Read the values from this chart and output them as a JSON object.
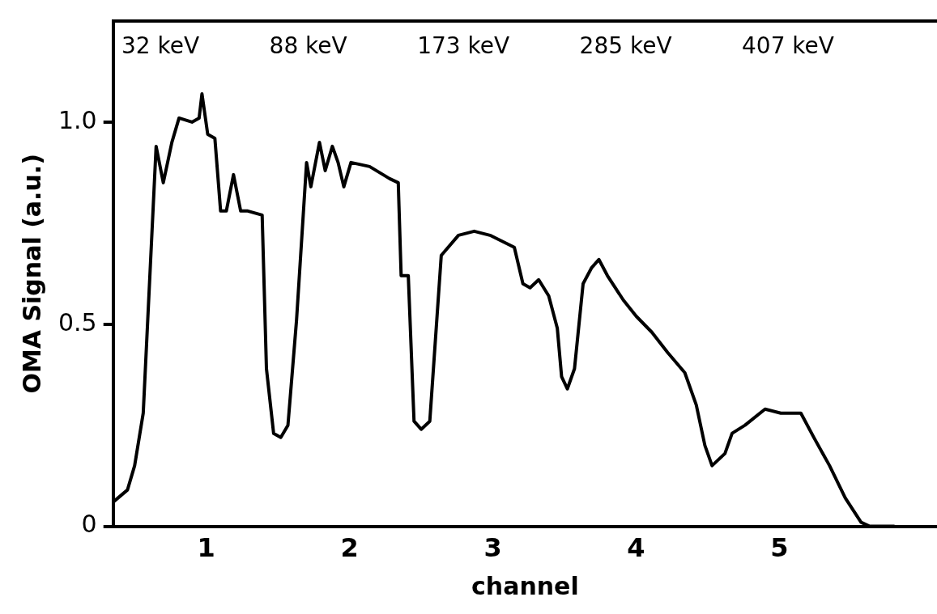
{
  "chart_data": {
    "type": "line",
    "xlabel": "channel",
    "ylabel": "OMA Signal (a.u.)",
    "x": [
      0.35,
      0.45,
      0.5,
      0.56,
      0.65,
      0.7,
      0.76,
      0.81,
      0.9,
      0.95,
      0.97,
      1.01,
      1.06,
      1.1,
      1.14,
      1.19,
      1.24,
      1.29,
      1.39,
      1.42,
      1.47,
      1.52,
      1.57,
      1.63,
      1.7,
      1.73,
      1.79,
      1.83,
      1.88,
      1.92,
      1.96,
      2.01,
      2.14,
      2.28,
      2.34,
      2.36,
      2.41,
      2.45,
      2.5,
      2.56,
      2.64,
      2.76,
      2.87,
      2.98,
      3.15,
      3.21,
      3.26,
      3.32,
      3.39,
      3.45,
      3.48,
      3.52,
      3.57,
      3.63,
      3.69,
      3.74,
      3.8,
      3.91,
      4.0,
      4.11,
      4.22,
      4.34,
      4.42,
      4.48,
      4.53,
      4.62,
      4.67,
      4.76,
      4.9,
      5.01,
      5.15,
      5.24,
      5.35,
      5.46,
      5.57,
      5.63,
      5.8
    ],
    "series": [
      {
        "color": "#000000",
        "values": [
          0.06,
          0.09,
          0.15,
          0.28,
          0.94,
          0.85,
          0.95,
          1.01,
          1.0,
          1.01,
          1.07,
          0.97,
          0.96,
          0.78,
          0.78,
          0.87,
          0.78,
          0.78,
          0.77,
          0.39,
          0.23,
          0.22,
          0.25,
          0.51,
          0.9,
          0.84,
          0.95,
          0.88,
          0.94,
          0.9,
          0.84,
          0.9,
          0.89,
          0.86,
          0.85,
          0.62,
          0.62,
          0.26,
          0.24,
          0.26,
          0.67,
          0.72,
          0.73,
          0.72,
          0.69,
          0.6,
          0.59,
          0.61,
          0.57,
          0.49,
          0.37,
          0.34,
          0.39,
          0.6,
          0.64,
          0.66,
          0.62,
          0.56,
          0.52,
          0.48,
          0.43,
          0.38,
          0.3,
          0.2,
          0.15,
          0.18,
          0.23,
          0.25,
          0.29,
          0.28,
          0.28,
          0.22,
          0.15,
          0.07,
          0.01,
          0,
          0
        ]
      }
    ],
    "xlim": [
      0.35,
      6.1
    ],
    "xticks": [
      1,
      2,
      3,
      4,
      5
    ],
    "ylim": [
      0,
      1.25
    ],
    "yticks": [
      0,
      0.5,
      {
        "value": 1,
        "label": "1.0"
      }
    ],
    "tick_labels": "xy",
    "grid": false,
    "legend": false,
    "marker": "none",
    "line_style": "solid",
    "annotations": [
      "32 keV",
      "88 keV",
      "173 keV",
      "285 keV",
      "407 keV"
    ]
  }
}
